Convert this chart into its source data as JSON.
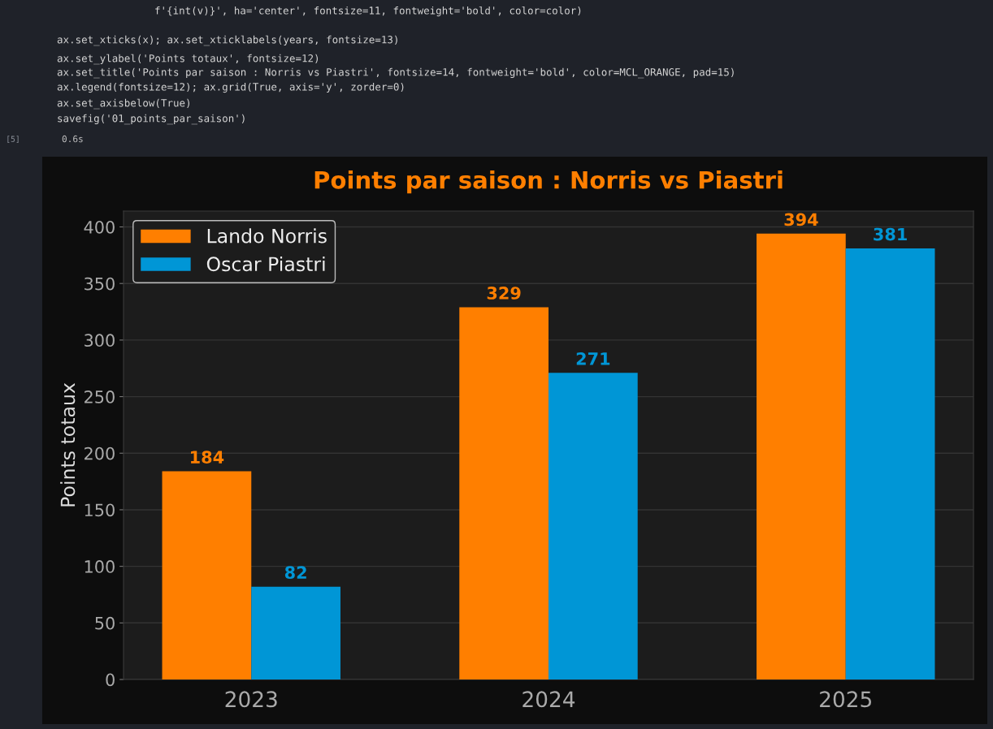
{
  "chart_data": {
    "type": "bar",
    "title": "Points par saison : Norris vs Piastri",
    "ylabel": "Points totaux",
    "categories": [
      "2023",
      "2024",
      "2025"
    ],
    "series": [
      {
        "name": "Lando Norris",
        "color": "#ff7f00",
        "values": [
          184,
          329,
          394
        ]
      },
      {
        "name": "Oscar Piastri",
        "color": "#0096d6",
        "values": [
          82,
          271,
          381
        ]
      }
    ],
    "ylim": [
      0,
      414
    ],
    "yticks": [
      0,
      50,
      100,
      150,
      200,
      250,
      300,
      350,
      400
    ],
    "grid": "y",
    "legend": "top left",
    "data_labels": true,
    "annotations": [
      "f'{int(v)}', ha='center', fontsize=11, fontweight='bold', color=color)",
      "ax.set_xticks(x); ax.set_xticklabels(years, fontsize=13)",
      "ax.set_ylabel('Points totaux', fontsize=12)",
      "ax.set_title('Points par saison : Norris vs Piastri', fontsize=14, fontweight='bold', color=MCL_ORANGE, pad=15)",
      "ax.legend(fontsize=12); ax.grid(True, axis='y', zorder=0)",
      "ax.set_axisbelow(True)",
      "savefig('01_points_par_saison')",
      "[5]",
      "0.6s"
    ]
  }
}
